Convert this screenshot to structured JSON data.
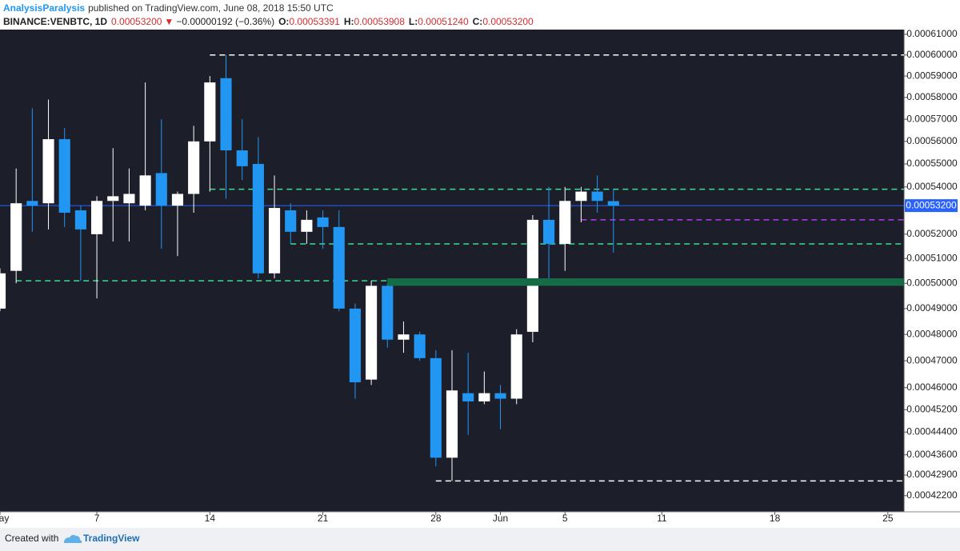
{
  "header": {
    "author": "AnalysisParalysis",
    "published": "published on TradingView.com, June 08, 2018 15:50 UTC",
    "symbol": "BINANCE:VENBTC, 1D",
    "last": "0.00053200",
    "arrow": "▼",
    "change": "−0.00000192 (−0.36%)",
    "ohlc": [
      {
        "label": "O:",
        "value": "0.00053391"
      },
      {
        "label": "H:",
        "value": "0.00053908"
      },
      {
        "label": "L:",
        "value": "0.00051240"
      },
      {
        "label": "C:",
        "value": "0.00053200"
      }
    ]
  },
  "footer": {
    "created": "Created with",
    "brand": "TradingView"
  },
  "chart_data": {
    "type": "candlestick",
    "categories": [
      "05-01",
      "05-02",
      "05-03",
      "05-04",
      "05-05",
      "05-06",
      "05-07",
      "05-08",
      "05-09",
      "05-10",
      "05-11",
      "05-12",
      "05-13",
      "05-14",
      "05-15",
      "05-16",
      "05-17",
      "05-18",
      "05-19",
      "05-20",
      "05-21",
      "05-22",
      "05-23",
      "05-24",
      "05-25",
      "05-26",
      "05-27",
      "05-28",
      "05-29",
      "05-30",
      "05-31",
      "06-01",
      "06-02",
      "06-03",
      "06-04",
      "06-05",
      "06-06",
      "06-07",
      "06-08"
    ],
    "open": [
      0.00049,
      0.000505,
      0.000534,
      0.000533,
      0.000561,
      0.00053,
      0.00052,
      0.000534,
      0.000533,
      0.000532,
      0.000546,
      0.000532,
      0.000537,
      0.00056,
      0.000589,
      0.000556,
      0.00055,
      0.000504,
      0.00053,
      0.000521,
      0.000527,
      0.000523,
      0.00049,
      0.000463,
      0.000499,
      0.000478,
      0.00048,
      0.000471,
      0.000435,
      0.000458,
      0.000455,
      0.000458,
      0.000456,
      0.000481,
      0.000526,
      0.000516,
      0.000534,
      0.000538,
      0.00053391
    ],
    "high": [
      0.000506,
      0.000548,
      0.000575,
      0.000579,
      0.000566,
      0.000532,
      0.000536,
      0.000557,
      0.000548,
      0.000587,
      0.00057,
      0.000538,
      0.000567,
      0.00059,
      0.0006,
      0.00057,
      0.000562,
      0.000545,
      0.000533,
      0.00053,
      0.00053,
      0.00053,
      0.000492,
      0.000501,
      0.0005,
      0.000485,
      0.000481,
      0.000474,
      0.000474,
      0.000473,
      0.000466,
      0.000461,
      0.000482,
      0.000528,
      0.00054,
      0.00054,
      0.00054,
      0.000545,
      0.00053908
    ],
    "low": [
      0.000489,
      0.0005,
      0.000521,
      0.000522,
      0.000523,
      0.000501,
      0.000494,
      0.000517,
      0.000517,
      0.00053,
      0.000514,
      0.000511,
      0.000529,
      0.000538,
      0.000535,
      0.000543,
      0.000502,
      0.000502,
      0.000516,
      0.000516,
      0.000514,
      0.000489,
      0.000456,
      0.000461,
      0.000475,
      0.000473,
      0.00047,
      0.000432,
      0.000427,
      0.000443,
      0.000454,
      0.000445,
      0.000454,
      0.000477,
      0.000501,
      0.000505,
      0.000525,
      0.000529,
      0.0005124
    ],
    "close": [
      0.000504,
      0.000533,
      0.000532,
      0.000561,
      0.000529,
      0.000522,
      0.000534,
      0.000536,
      0.000537,
      0.000545,
      0.000532,
      0.000537,
      0.00056,
      0.000587,
      0.000556,
      0.000549,
      0.000504,
      0.000531,
      0.000521,
      0.000526,
      0.000523,
      0.00049,
      0.000462,
      0.000499,
      0.000478,
      0.00048,
      0.000471,
      0.000435,
      0.000459,
      0.000455,
      0.000458,
      0.000456,
      0.00048,
      0.000526,
      0.000516,
      0.000534,
      0.000538,
      0.000534,
      0.000532
    ],
    "up_color": "#ffffff",
    "down_color": "#2196f3",
    "price_line_color": "#2962ff",
    "log_scale": true,
    "grid": false,
    "xlim": [
      "05-01",
      "06-26"
    ],
    "xticks": [
      {
        "value": "05-01",
        "label": "May"
      },
      {
        "value": "05-07",
        "label": "7"
      },
      {
        "value": "05-14",
        "label": "14"
      },
      {
        "value": "05-21",
        "label": "21"
      },
      {
        "value": "05-28",
        "label": "28"
      },
      {
        "value": "06-01",
        "label": "Jun"
      },
      {
        "value": "06-05",
        "label": "5"
      },
      {
        "value": "06-11",
        "label": "11"
      },
      {
        "value": "06-18",
        "label": "18"
      },
      {
        "value": "06-25",
        "label": "25"
      }
    ],
    "ylim": [
      0.0004166,
      0.0006123
    ],
    "yticks": [
      {
        "value": 0.00061,
        "label": "0.00061000"
      },
      {
        "value": 0.0006,
        "label": "0.00060000"
      },
      {
        "value": 0.00059,
        "label": "0.00059000"
      },
      {
        "value": 0.00058,
        "label": "0.00058000"
      },
      {
        "value": 0.00057,
        "label": "0.00057000"
      },
      {
        "value": 0.00056,
        "label": "0.00056000"
      },
      {
        "value": 0.00055,
        "label": "0.00055000"
      },
      {
        "value": 0.00054,
        "label": "0.00054000"
      },
      {
        "value": 0.00052,
        "label": "0.00052000"
      },
      {
        "value": 0.00051,
        "label": "0.00051000"
      },
      {
        "value": 0.0005,
        "label": "0.00050000"
      },
      {
        "value": 0.00049,
        "label": "0.00049000"
      },
      {
        "value": 0.00048,
        "label": "0.00048000"
      },
      {
        "value": 0.00047,
        "label": "0.00047000"
      },
      {
        "value": 0.00046,
        "label": "0.00046000"
      },
      {
        "value": 0.000452,
        "label": "0.00045200"
      },
      {
        "value": 0.000444,
        "label": "0.00044400"
      },
      {
        "value": 0.000436,
        "label": "0.00043600"
      },
      {
        "value": 0.000429,
        "label": "0.00042900"
      },
      {
        "value": 0.000422,
        "label": "0.00042200"
      }
    ],
    "levels": [
      {
        "value": 0.0006,
        "from": "05-14",
        "color": "#ffffff"
      },
      {
        "value": 0.000539,
        "from": "05-14",
        "color": "#3ddc97"
      },
      {
        "value": 0.000516,
        "from": "05-19",
        "color": "#3ddc97"
      },
      {
        "value": 0.000501,
        "from": "05-02",
        "color": "#3ddc97"
      },
      {
        "value": 0.000526,
        "from": "06-06",
        "color": "#b23cf0"
      },
      {
        "value": 0.000427,
        "from": "05-28",
        "color": "#ffffff"
      }
    ],
    "zones": [
      {
        "low": 0.000499,
        "high": 0.000502,
        "from": "05-25",
        "color": "#146b45"
      }
    ]
  }
}
